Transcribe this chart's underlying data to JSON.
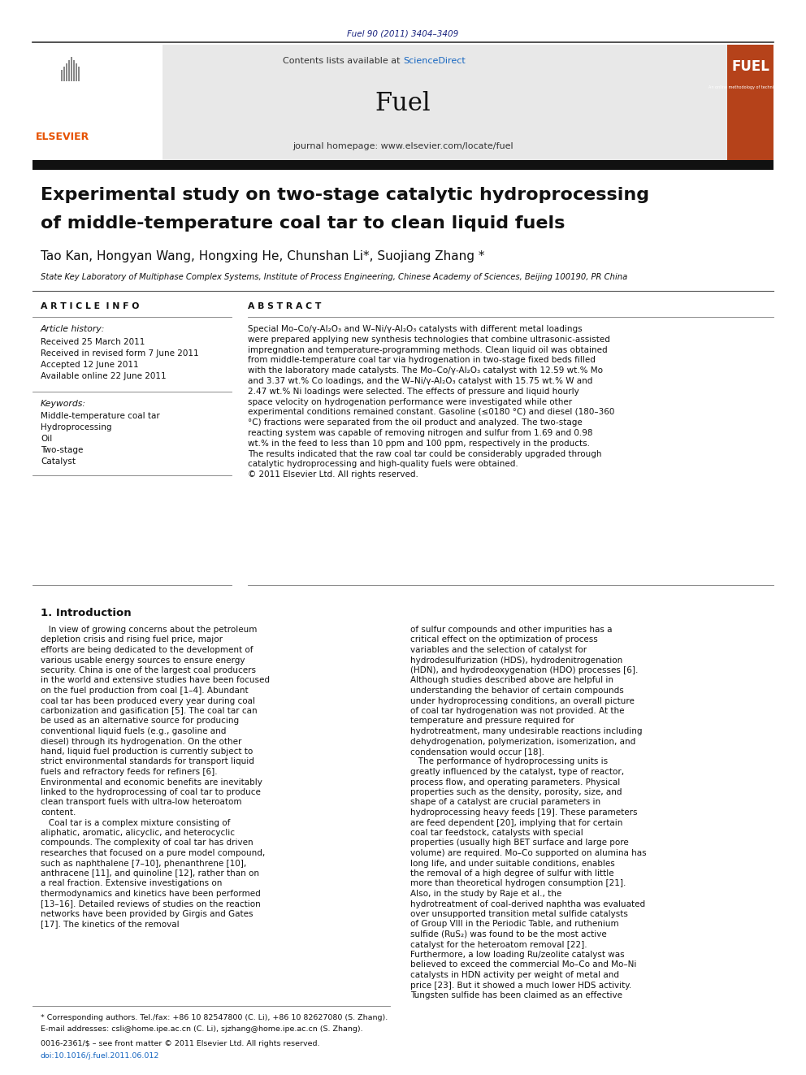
{
  "page_width": 9.92,
  "page_height": 13.23,
  "background_color": "#ffffff",
  "journal_ref": "Fuel 90 (2011) 3404–3409",
  "journal_ref_color": "#1a237e",
  "header_bg": "#e8e8e8",
  "sciencedirect_color": "#1565c0",
  "journal_name": "Fuel",
  "journal_homepage": "journal homepage: www.elsevier.com/locate/fuel",
  "elsevier_color": "#e65100",
  "paper_title_line1": "Experimental study on two-stage catalytic hydroprocessing",
  "paper_title_line2": "of middle-temperature coal tar to clean liquid fuels",
  "authors": "Tao Kan, Hongyan Wang, Hongxing He, Chunshan Li*, Suojiang Zhang *",
  "affiliation": "State Key Laboratory of Multiphase Complex Systems, Institute of Process Engineering, Chinese Academy of Sciences, Beijing 100190, PR China",
  "article_info_header": "A R T I C L E  I N F O",
  "abstract_header": "A B S T R A C T",
  "article_history_label": "Article history:",
  "received": "Received 25 March 2011",
  "revised": "Received in revised form 7 June 2011",
  "accepted": "Accepted 12 June 2011",
  "available": "Available online 22 June 2011",
  "keywords_label": "Keywords:",
  "keywords": [
    "Middle-temperature coal tar",
    "Hydroprocessing",
    "Oil",
    "Two-stage",
    "Catalyst"
  ],
  "abstract_text": "Special Mo–Co/γ-Al₂O₃ and W–Ni/γ-Al₂O₃ catalysts with different metal loadings were prepared applying new synthesis technologies that combine ultrasonic-assisted impregnation and temperature-programming methods. Clean liquid oil was obtained from middle-temperature coal tar via hydrogenation in two-stage fixed beds filled with the laboratory made catalysts. The Mo–Co/γ-Al₂O₃ catalyst with 12.59 wt.% Mo and 3.37 wt.% Co loadings, and the W–Ni/γ-Al₂O₃ catalyst with 15.75 wt.% W and 2.47 wt.% Ni loadings were selected. The effects of pressure and liquid hourly space velocity on hydrogenation performance were investigated while other experimental conditions remained constant. Gasoline (≤0180 °C) and diesel (180–360 °C) fractions were separated from the oil product and analyzed. The two-stage reacting system was capable of removing nitrogen and sulfur from 1.69 and 0.98 wt.% in the feed to less than 10 ppm and 100 ppm, respectively in the products. The results indicated that the raw coal tar could be considerably upgraded through catalytic hydroprocessing and high-quality fuels were obtained.\n© 2011 Elsevier Ltd. All rights reserved.",
  "intro_header": "1. Introduction",
  "intro_col1": "   In view of growing concerns about the petroleum depletion crisis and rising fuel price, major efforts are being dedicated to the development of various usable energy sources to ensure energy security. China is one of the largest coal producers in the world and extensive studies have been focused on the fuel production from coal [1–4]. Abundant coal tar has been produced every year during coal carbonization and gasification [5]. The coal tar can be used as an alternative source for producing conventional liquid fuels (e.g., gasoline and diesel) through its hydrogenation. On the other hand, liquid fuel production is currently subject to strict environmental standards for transport liquid fuels and refractory feeds for refiners [6]. Environmental and economic benefits are inevitably linked to the hydroprocessing of coal tar to produce clean transport fuels with ultra-low heteroatom content.\n   Coal tar is a complex mixture consisting of aliphatic, aromatic, alicyclic, and heterocyclic compounds. The complexity of coal tar has driven researches that focused on a pure model compound, such as naphthalene [7–10], phenanthrene [10], anthracene [11], and quinoline [12], rather than on a real fraction. Extensive investigations on thermodynamics and kinetics have been performed [13–16]. Detailed reviews of studies on the reaction networks have been provided by Girgis and Gates [17]. The kinetics of the removal",
  "intro_col2": "of sulfur compounds and other impurities has a critical effect on the optimization of process variables and the selection of catalyst for hydrodesulfurization (HDS), hydrodenitrogenation (HDN), and hydrodeoxygenation (HDO) processes [6]. Although studies described above are helpful in understanding the behavior of certain compounds under hydroprocessing conditions, an overall picture of coal tar hydrogenation was not provided. At the temperature and pressure required for hydrotreatment, many undesirable reactions including dehydrogenation, polymerization, isomerization, and condensation would occur [18].\n   The performance of hydroprocessing units is greatly influenced by the catalyst, type of reactor, process flow, and operating parameters. Physical properties such as the density, porosity, size, and shape of a catalyst are crucial parameters in hydroprocessing heavy feeds [19]. These parameters are feed dependent [20], implying that for certain coal tar feedstock, catalysts with special properties (usually high BET surface and large pore volume) are required. Mo–Co supported on alumina has long life, and under suitable conditions, enables the removal of a high degree of sulfur with little more than theoretical hydrogen consumption [21]. Also, in the study by Raje et al., the hydrotreatment of coal-derived naphtha was evaluated over unsupported transition metal sulfide catalysts of Group VIII in the Periodic Table, and ruthenium sulfide (RuS₂) was found to be the most active catalyst for the heteroatom removal [22]. Furthermore, a low loading Ru/zeolite catalyst was believed to exceed the commercial Mo–Co and Mo–Ni catalysts in HDN activity per weight of metal and price [23]. But it showed a much lower HDS activity. Tungsten sulfide has been claimed as an effective catalyst",
  "footer_line1": "* Corresponding authors. Tel./fax: +86 10 82547800 (C. Li), +86 10 82627080 (S. Zhang).",
  "footer_line2": "E-mail addresses: csli@home.ipe.ac.cn (C. Li), sjzhang@home.ipe.ac.cn (S. Zhang).",
  "footer_line3": "0016-2361/$ – see front matter © 2011 Elsevier Ltd. All rights reserved.",
  "footer_line4": "doi:10.1016/j.fuel.2011.06.012"
}
